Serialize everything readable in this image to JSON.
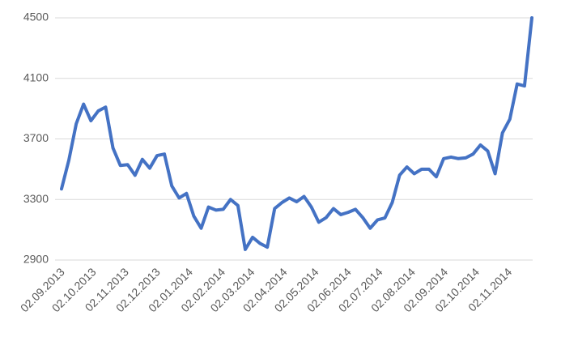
{
  "chart_data": {
    "type": "line",
    "x": [
      "02.09.2013",
      "09.09.2013",
      "16.09.2013",
      "23.09.2013",
      "30.09.2013",
      "07.10.2013",
      "14.10.2013",
      "21.10.2013",
      "28.10.2013",
      "04.11.2013",
      "11.11.2013",
      "18.11.2013",
      "25.11.2013",
      "02.12.2013",
      "09.12.2013",
      "16.12.2013",
      "23.12.2013",
      "30.12.2013",
      "06.01.2014",
      "13.01.2014",
      "20.01.2014",
      "27.01.2014",
      "03.02.2014",
      "10.02.2014",
      "17.02.2014",
      "24.02.2014",
      "03.03.2014",
      "10.03.2014",
      "17.03.2014",
      "24.03.2014",
      "31.03.2014",
      "07.04.2014",
      "14.04.2014",
      "21.04.2014",
      "28.04.2014",
      "05.05.2014",
      "12.05.2014",
      "19.05.2014",
      "26.05.2014",
      "02.06.2014",
      "09.06.2014",
      "16.06.2014",
      "23.06.2014",
      "30.06.2014",
      "07.07.2014",
      "14.07.2014",
      "21.07.2014",
      "28.07.2014",
      "04.08.2014",
      "11.08.2014",
      "18.08.2014",
      "25.08.2014",
      "01.09.2014",
      "08.09.2014",
      "15.09.2014",
      "22.09.2014",
      "29.09.2014",
      "06.10.2014",
      "13.10.2014",
      "20.10.2014",
      "27.10.2014",
      "03.11.2014",
      "10.11.2014",
      "17.11.2014",
      "24.11.2014"
    ],
    "values": [
      3370,
      3560,
      3800,
      3930,
      3820,
      3885,
      3910,
      3640,
      3525,
      3530,
      3460,
      3565,
      3507,
      3590,
      3600,
      3390,
      3310,
      3340,
      3190,
      3110,
      3250,
      3230,
      3235,
      3300,
      3260,
      2970,
      3050,
      3010,
      2985,
      3240,
      3280,
      3310,
      3285,
      3320,
      3250,
      3150,
      3180,
      3240,
      3200,
      3215,
      3235,
      3180,
      3110,
      3165,
      3178,
      3280,
      3460,
      3515,
      3470,
      3500,
      3500,
      3450,
      3570,
      3580,
      3570,
      3575,
      3600,
      3660,
      3620,
      3470,
      3740,
      3830,
      4063,
      4050,
      4500
    ],
    "color": "#4472c4",
    "xlim": [
      "02.09.2013",
      "24.11.2014"
    ],
    "xticks": [
      "02.09.2013",
      "02.10.2013",
      "02.11.2013",
      "02.12.2013",
      "02.01.2014",
      "02.02.2014",
      "02.03.2014",
      "02.04.2014",
      "02.05.2014",
      "02.06.2014",
      "02.07.2014",
      "02.08.2014",
      "02.09.2014",
      "02.10.2014",
      "02.11.2014"
    ],
    "ylim": [
      2900,
      4500
    ],
    "yticks": [
      2900,
      3300,
      3700,
      4100,
      4500
    ],
    "grid": true
  }
}
